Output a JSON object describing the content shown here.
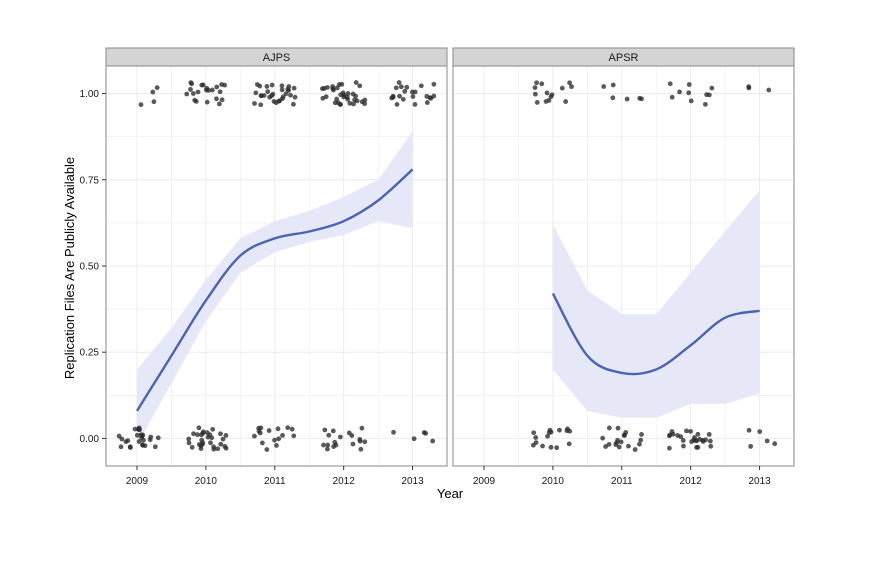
{
  "chart_data": {
    "type": "scatter",
    "xlabel": "Year",
    "ylabel": "Replication Files Are Publicly Available",
    "x_ticks": [
      "2009",
      "2010",
      "2011",
      "2012",
      "2013"
    ],
    "y_ticks": [
      "0.00",
      "0.25",
      "0.50",
      "0.75",
      "1.00"
    ],
    "xlim": [
      2008.55,
      2013.5
    ],
    "ylim": [
      -0.08,
      1.08
    ],
    "grid": true,
    "colors": {
      "points": "#2b2b2b",
      "smooth_line": "#4a63b5",
      "confidence_band": "#e4e6f6",
      "strip_background": "#d4d4d4",
      "panel_border": "#8a8a8a",
      "gridline": "#ececec"
    },
    "panels": [
      {
        "label": "AJPS",
        "smooth": {
          "x": [
            2009,
            2009.5,
            2010,
            2010.5,
            2011,
            2011.5,
            2012,
            2012.5,
            2013
          ],
          "y": [
            0.08,
            0.24,
            0.4,
            0.53,
            0.58,
            0.6,
            0.63,
            0.69,
            0.78
          ],
          "lower": [
            -0.02,
            0.16,
            0.34,
            0.48,
            0.54,
            0.57,
            0.59,
            0.63,
            0.61
          ],
          "upper": [
            0.2,
            0.32,
            0.46,
            0.58,
            0.63,
            0.66,
            0.7,
            0.75,
            0.89
          ]
        },
        "points": {
          "2009": {
            "zeros": 26,
            "ones": 4
          },
          "2010": {
            "zeros": 30,
            "ones": 22
          },
          "2011": {
            "zeros": 16,
            "ones": 30
          },
          "2012": {
            "zeros": 18,
            "ones": 34
          },
          "2013": {
            "zeros": 5,
            "ones": 22
          }
        }
      },
      {
        "label": "APSR",
        "smooth": {
          "x": [
            2010,
            2010.5,
            2011,
            2011.5,
            2012,
            2012.5,
            2013
          ],
          "y": [
            0.42,
            0.24,
            0.19,
            0.2,
            0.27,
            0.35,
            0.37
          ],
          "lower": [
            0.2,
            0.08,
            0.06,
            0.06,
            0.1,
            0.1,
            0.13
          ],
          "upper": [
            0.62,
            0.43,
            0.36,
            0.36,
            0.48,
            0.6,
            0.72
          ]
        },
        "points": {
          "2010": {
            "zeros": 16,
            "ones": 14
          },
          "2011": {
            "zeros": 18,
            "ones": 6
          },
          "2012": {
            "zeros": 26,
            "ones": 10
          },
          "2013": {
            "zeros": 5,
            "ones": 3
          }
        }
      }
    ]
  }
}
